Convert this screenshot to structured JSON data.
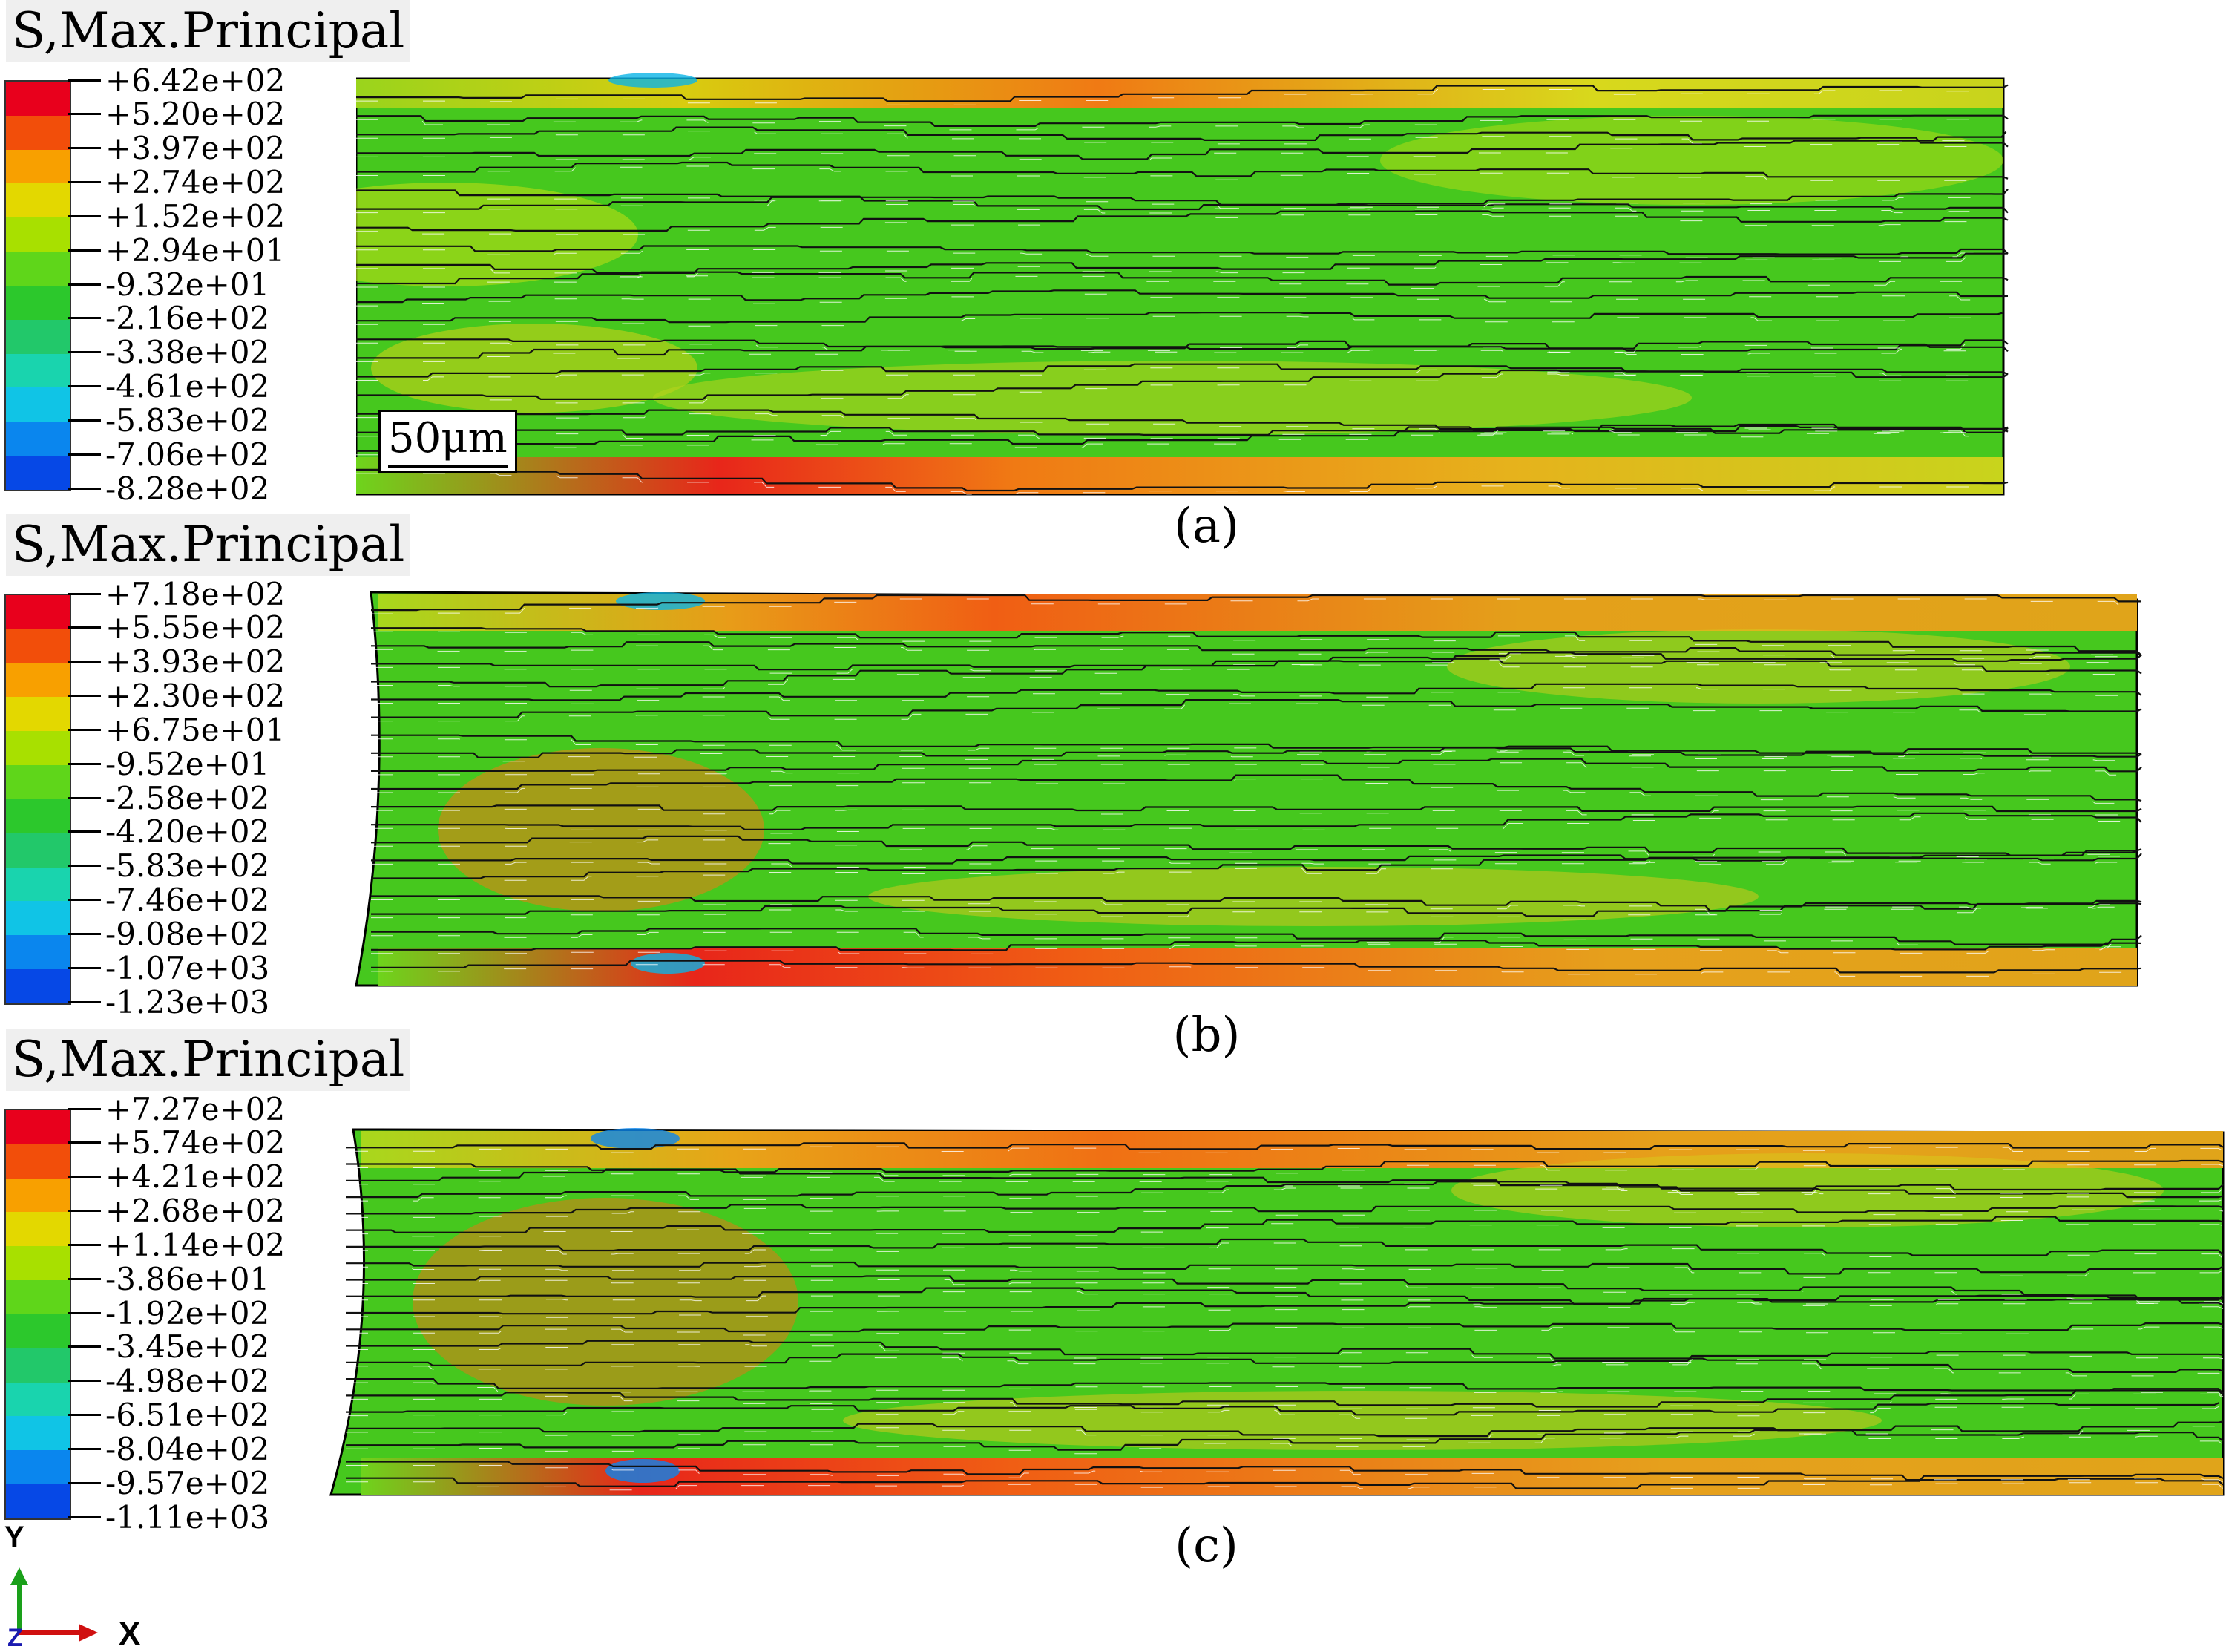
{
  "panels": [
    {
      "id": "a",
      "legend_title": "S,Max.Principal",
      "legend_values": [
        "+6.42e+02",
        "+5.20e+02",
        "+3.97e+02",
        "+2.74e+02",
        "+1.52e+02",
        "+2.94e+01",
        "-9.32e+01",
        "-2.16e+02",
        "-3.38e+02",
        "-4.61e+02",
        "-5.83e+02",
        "-7.06e+02",
        "-8.28e+02"
      ],
      "caption": "(a)",
      "scale_bar": "50μm"
    },
    {
      "id": "b",
      "legend_title": "S,Max.Principal",
      "legend_values": [
        "+7.18e+02",
        "+5.55e+02",
        "+3.93e+02",
        "+2.30e+02",
        "+6.75e+01",
        "-9.52e+01",
        "-2.58e+02",
        "-4.20e+02",
        "-5.83e+02",
        "-7.46e+02",
        "-9.08e+02",
        "-1.07e+03",
        "-1.23e+03"
      ],
      "caption": "(b)"
    },
    {
      "id": "c",
      "legend_title": "S,Max.Principal",
      "legend_values": [
        "+7.27e+02",
        "+5.74e+02",
        "+4.21e+02",
        "+2.68e+02",
        "+1.14e+02",
        "-3.86e+01",
        "-1.92e+02",
        "-3.45e+02",
        "-4.98e+02",
        "-6.51e+02",
        "-8.04e+02",
        "-9.57e+02",
        "-1.11e+03"
      ],
      "caption": "(c)"
    }
  ],
  "legend_colors": [
    "#e8001c",
    "#f24e0a",
    "#f8a000",
    "#e3d800",
    "#a8e000",
    "#5fd61a",
    "#2cc82c",
    "#22c86a",
    "#19d4ae",
    "#10c4e6",
    "#0a86ee",
    "#0648e6",
    "#0010d8"
  ],
  "triad": {
    "y_label": "Y",
    "x_label": "X",
    "z_label": "Z"
  }
}
